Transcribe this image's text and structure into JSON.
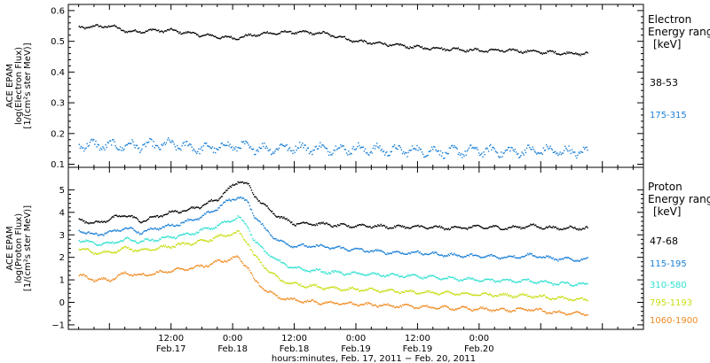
{
  "chart_data": [
    {
      "type": "scatter",
      "ylabel_lines": [
        "ACE EPAM",
        "log(Electron Flux)",
        "[1/(cm²s ster MeV)]"
      ],
      "ylim": [
        0.09,
        0.62
      ],
      "yticks": [
        0.1,
        0.2,
        0.3,
        0.4,
        0.5,
        0.6
      ],
      "ytick_labels": [
        "0.1",
        "0.2",
        "0.3",
        "0.4",
        "0.5",
        "0.6"
      ],
      "xlim_hours": [
        -8,
        104
      ],
      "legend_title_lines": [
        "Electron",
        "Energy range",
        "[keV]"
      ],
      "series": [
        {
          "name": "38-53",
          "color": "#000000",
          "x_hours": [
            -6,
            0,
            4,
            8,
            12,
            18,
            24,
            30,
            36,
            42,
            48,
            54,
            60,
            66,
            72,
            78,
            84,
            90,
            93
          ],
          "y": [
            0.545,
            0.55,
            0.53,
            0.535,
            0.535,
            0.52,
            0.51,
            0.525,
            0.53,
            0.525,
            0.5,
            0.49,
            0.48,
            0.475,
            0.47,
            0.47,
            0.465,
            0.46,
            0.46
          ]
        },
        {
          "name": "175-315",
          "color": "#1a7fd6",
          "x_hours": [
            -6,
            0,
            6,
            12,
            18,
            24,
            30,
            36,
            42,
            48,
            54,
            60,
            66,
            72,
            78,
            84,
            90,
            93
          ],
          "y": [
            0.165,
            0.16,
            0.16,
            0.165,
            0.15,
            0.16,
            0.15,
            0.155,
            0.15,
            0.15,
            0.145,
            0.145,
            0.14,
            0.145,
            0.14,
            0.145,
            0.14,
            0.14
          ]
        }
      ]
    },
    {
      "type": "scatter",
      "ylabel_lines": [
        "ACE EPAM",
        "log(Proton Flux)",
        "[1/(cm²s ster MeV)]"
      ],
      "ylim": [
        -1.2,
        6
      ],
      "yticks": [
        -1,
        0,
        1,
        2,
        3,
        4,
        5
      ],
      "ytick_labels": [
        "−1",
        "0",
        "1",
        "2",
        "3",
        "4",
        "5"
      ],
      "xlim_hours": [
        -8,
        104
      ],
      "xticks_hours": [
        12,
        24,
        36,
        48,
        60,
        72
      ],
      "xtick_time_labels": [
        "12:00",
        "0:00",
        "12:00",
        "0:00",
        "12:00",
        "0:00"
      ],
      "xtick_date_labels": [
        "Feb.17",
        "Feb.18",
        "Feb.18",
        "Feb.19",
        "Feb.19",
        "Feb.20"
      ],
      "xlabel": "hours:minutes, Feb. 17, 2011 − Feb. 20, 2011",
      "legend_title_lines": [
        "Proton",
        "Energy range",
        "[keV]"
      ],
      "series": [
        {
          "name": "47-68",
          "color": "#000000",
          "x_hours": [
            -6,
            -3,
            0,
            3,
            6,
            9,
            12,
            15,
            18,
            21,
            23,
            25,
            27,
            28,
            30,
            33,
            36,
            40,
            45,
            50,
            55,
            60,
            66,
            72,
            78,
            82,
            86,
            90,
            93
          ],
          "y": [
            3.7,
            3.5,
            3.7,
            3.9,
            3.6,
            3.8,
            4.0,
            4.1,
            4.3,
            4.6,
            5.0,
            5.4,
            5.2,
            4.8,
            4.3,
            3.8,
            3.5,
            3.5,
            3.4,
            3.4,
            3.35,
            3.35,
            3.3,
            3.35,
            3.3,
            3.4,
            3.3,
            3.3,
            3.3
          ]
        },
        {
          "name": "115-195",
          "color": "#1a7fd6",
          "x_hours": [
            -6,
            -3,
            0,
            3,
            6,
            9,
            12,
            15,
            18,
            21,
            23,
            25,
            27,
            28,
            30,
            33,
            36,
            40,
            45,
            50,
            55,
            60,
            66,
            72,
            78,
            82,
            86,
            90,
            93
          ],
          "y": [
            3.2,
            3.0,
            3.1,
            3.3,
            3.1,
            3.3,
            3.4,
            3.6,
            3.8,
            4.2,
            4.5,
            4.7,
            4.4,
            3.9,
            3.3,
            2.7,
            2.5,
            2.5,
            2.4,
            2.3,
            2.2,
            2.2,
            2.1,
            2.05,
            2.0,
            2.1,
            1.95,
            1.9,
            1.9
          ]
        },
        {
          "name": "310-580",
          "color": "#2ee0d0",
          "x_hours": [
            -6,
            -3,
            0,
            3,
            6,
            9,
            12,
            15,
            18,
            21,
            23,
            25,
            27,
            28,
            30,
            33,
            36,
            40,
            45,
            50,
            55,
            60,
            66,
            72,
            78,
            82,
            86,
            90,
            93
          ],
          "y": [
            2.8,
            2.6,
            2.6,
            2.8,
            2.7,
            2.8,
            2.9,
            3.0,
            3.2,
            3.4,
            3.6,
            3.8,
            3.3,
            2.8,
            2.3,
            1.8,
            1.5,
            1.4,
            1.3,
            1.25,
            1.2,
            1.15,
            1.05,
            1.0,
            0.95,
            0.95,
            0.85,
            0.8,
            0.8
          ]
        },
        {
          "name": "795-1193",
          "color": "#c8dd10",
          "x_hours": [
            -6,
            -3,
            0,
            3,
            6,
            9,
            12,
            15,
            18,
            21,
            23,
            25,
            27,
            28,
            30,
            33,
            36,
            40,
            45,
            50,
            55,
            60,
            66,
            72,
            78,
            82,
            86,
            90,
            93
          ],
          "y": [
            2.4,
            2.2,
            2.2,
            2.4,
            2.3,
            2.4,
            2.5,
            2.6,
            2.7,
            2.9,
            3.0,
            3.1,
            2.6,
            2.1,
            1.6,
            1.0,
            0.8,
            0.7,
            0.6,
            0.55,
            0.5,
            0.45,
            0.4,
            0.35,
            0.3,
            0.3,
            0.2,
            0.15,
            0.1
          ]
        },
        {
          "name": "1060-1900",
          "color": "#f08a20",
          "x_hours": [
            -6,
            -3,
            0,
            3,
            6,
            9,
            12,
            15,
            18,
            21,
            23,
            25,
            27,
            28,
            30,
            33,
            36,
            40,
            45,
            50,
            55,
            60,
            66,
            72,
            78,
            82,
            86,
            90,
            93
          ],
          "y": [
            1.2,
            1.0,
            1.0,
            1.3,
            1.2,
            1.3,
            1.4,
            1.5,
            1.6,
            1.8,
            1.9,
            2.0,
            1.5,
            1.0,
            0.6,
            0.2,
            0.1,
            0.0,
            -0.05,
            -0.1,
            -0.15,
            -0.2,
            -0.25,
            -0.3,
            -0.35,
            -0.3,
            -0.45,
            -0.5,
            -0.5
          ]
        }
      ]
    }
  ]
}
